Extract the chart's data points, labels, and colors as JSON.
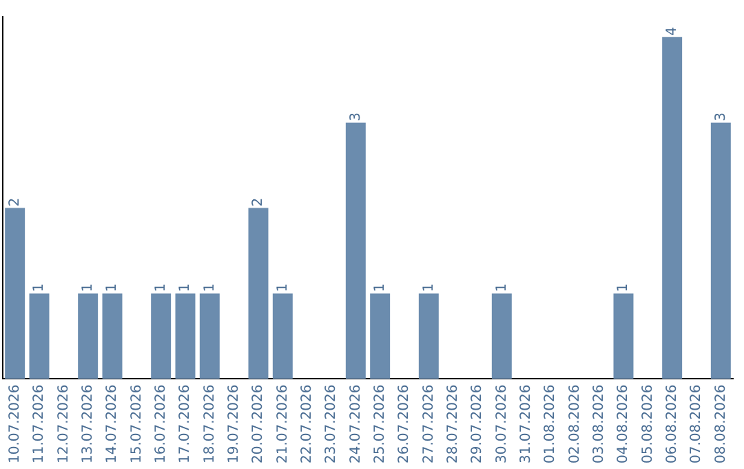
{
  "chart_data": {
    "type": "bar",
    "categories": [
      "10.07.2026",
      "11.07.2026",
      "12.07.2026",
      "13.07.2026",
      "14.07.2026",
      "15.07.2026",
      "16.07.2026",
      "17.07.2026",
      "18.07.2026",
      "19.07.2026",
      "20.07.2026",
      "21.07.2026",
      "22.07.2026",
      "23.07.2026",
      "24.07.2026",
      "25.07.2026",
      "26.07.2026",
      "27.07.2026",
      "28.07.2026",
      "29.07.2026",
      "30.07.2026",
      "31.07.2026",
      "01.08.2026",
      "02.08.2026",
      "03.08.2026",
      "04.08.2026",
      "05.08.2026",
      "06.08.2026",
      "07.08.2026",
      "08.08.2026"
    ],
    "values": [
      2,
      1,
      0,
      1,
      1,
      0,
      1,
      1,
      1,
      0,
      2,
      1,
      0,
      0,
      3,
      1,
      0,
      1,
      0,
      0,
      1,
      0,
      0,
      0,
      0,
      1,
      0,
      4,
      0,
      3
    ],
    "value_labels": [
      "2",
      "1",
      null,
      "1",
      "1",
      null,
      "1",
      "1",
      "1",
      null,
      "2",
      "1",
      null,
      null,
      "3",
      "1",
      null,
      "1",
      null,
      null,
      "1",
      null,
      null,
      null,
      null,
      "1",
      null,
      "4",
      null,
      "3"
    ],
    "color": "#6b8cae",
    "grid": false,
    "legend": false,
    "tick_labels": "x"
  }
}
